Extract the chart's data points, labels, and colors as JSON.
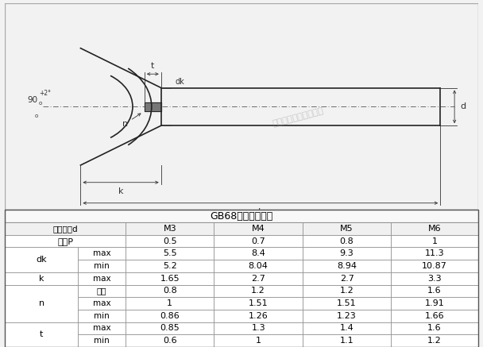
{
  "title": "GB68开槽沉头螺丝",
  "col_labels": [
    "螺纹规格d",
    "M3",
    "M4",
    "M5",
    "M6"
  ],
  "row_label_P": "牙距P",
  "row_P": [
    "0.5",
    "0.7",
    "0.8",
    "1"
  ],
  "row_groups": [
    {
      "label": "dk",
      "sub": [
        [
          "max",
          "5.5",
          "8.4",
          "9.3",
          "11.3"
        ],
        [
          "min",
          "5.2",
          "8.04",
          "8.94",
          "10.87"
        ]
      ]
    },
    {
      "label": "k",
      "sub": [
        [
          "max",
          "1.65",
          "2.7",
          "2.7",
          "3.3"
        ]
      ]
    },
    {
      "label": "n",
      "sub": [
        [
          "公称",
          "0.8",
          "1.2",
          "1.2",
          "1.6"
        ],
        [
          "max",
          "1",
          "1.51",
          "1.51",
          "1.91"
        ],
        [
          "min",
          "0.86",
          "1.26",
          "1.23",
          "1.66"
        ]
      ]
    },
    {
      "label": "t",
      "sub": [
        [
          "max",
          "0.85",
          "1.3",
          "1.4",
          "1.6"
        ],
        [
          "min",
          "0.6",
          "1",
          "1.1",
          "1.2"
        ]
      ]
    }
  ],
  "drawing_bg": "#e8e8e8",
  "table_bg": "#ffffff",
  "line_color": "#222222",
  "dim_color": "#333333",
  "watermark": "法士威密零件有限公司",
  "angle_text": "90",
  "angle_sup": "+2",
  "angle_sub": "0"
}
